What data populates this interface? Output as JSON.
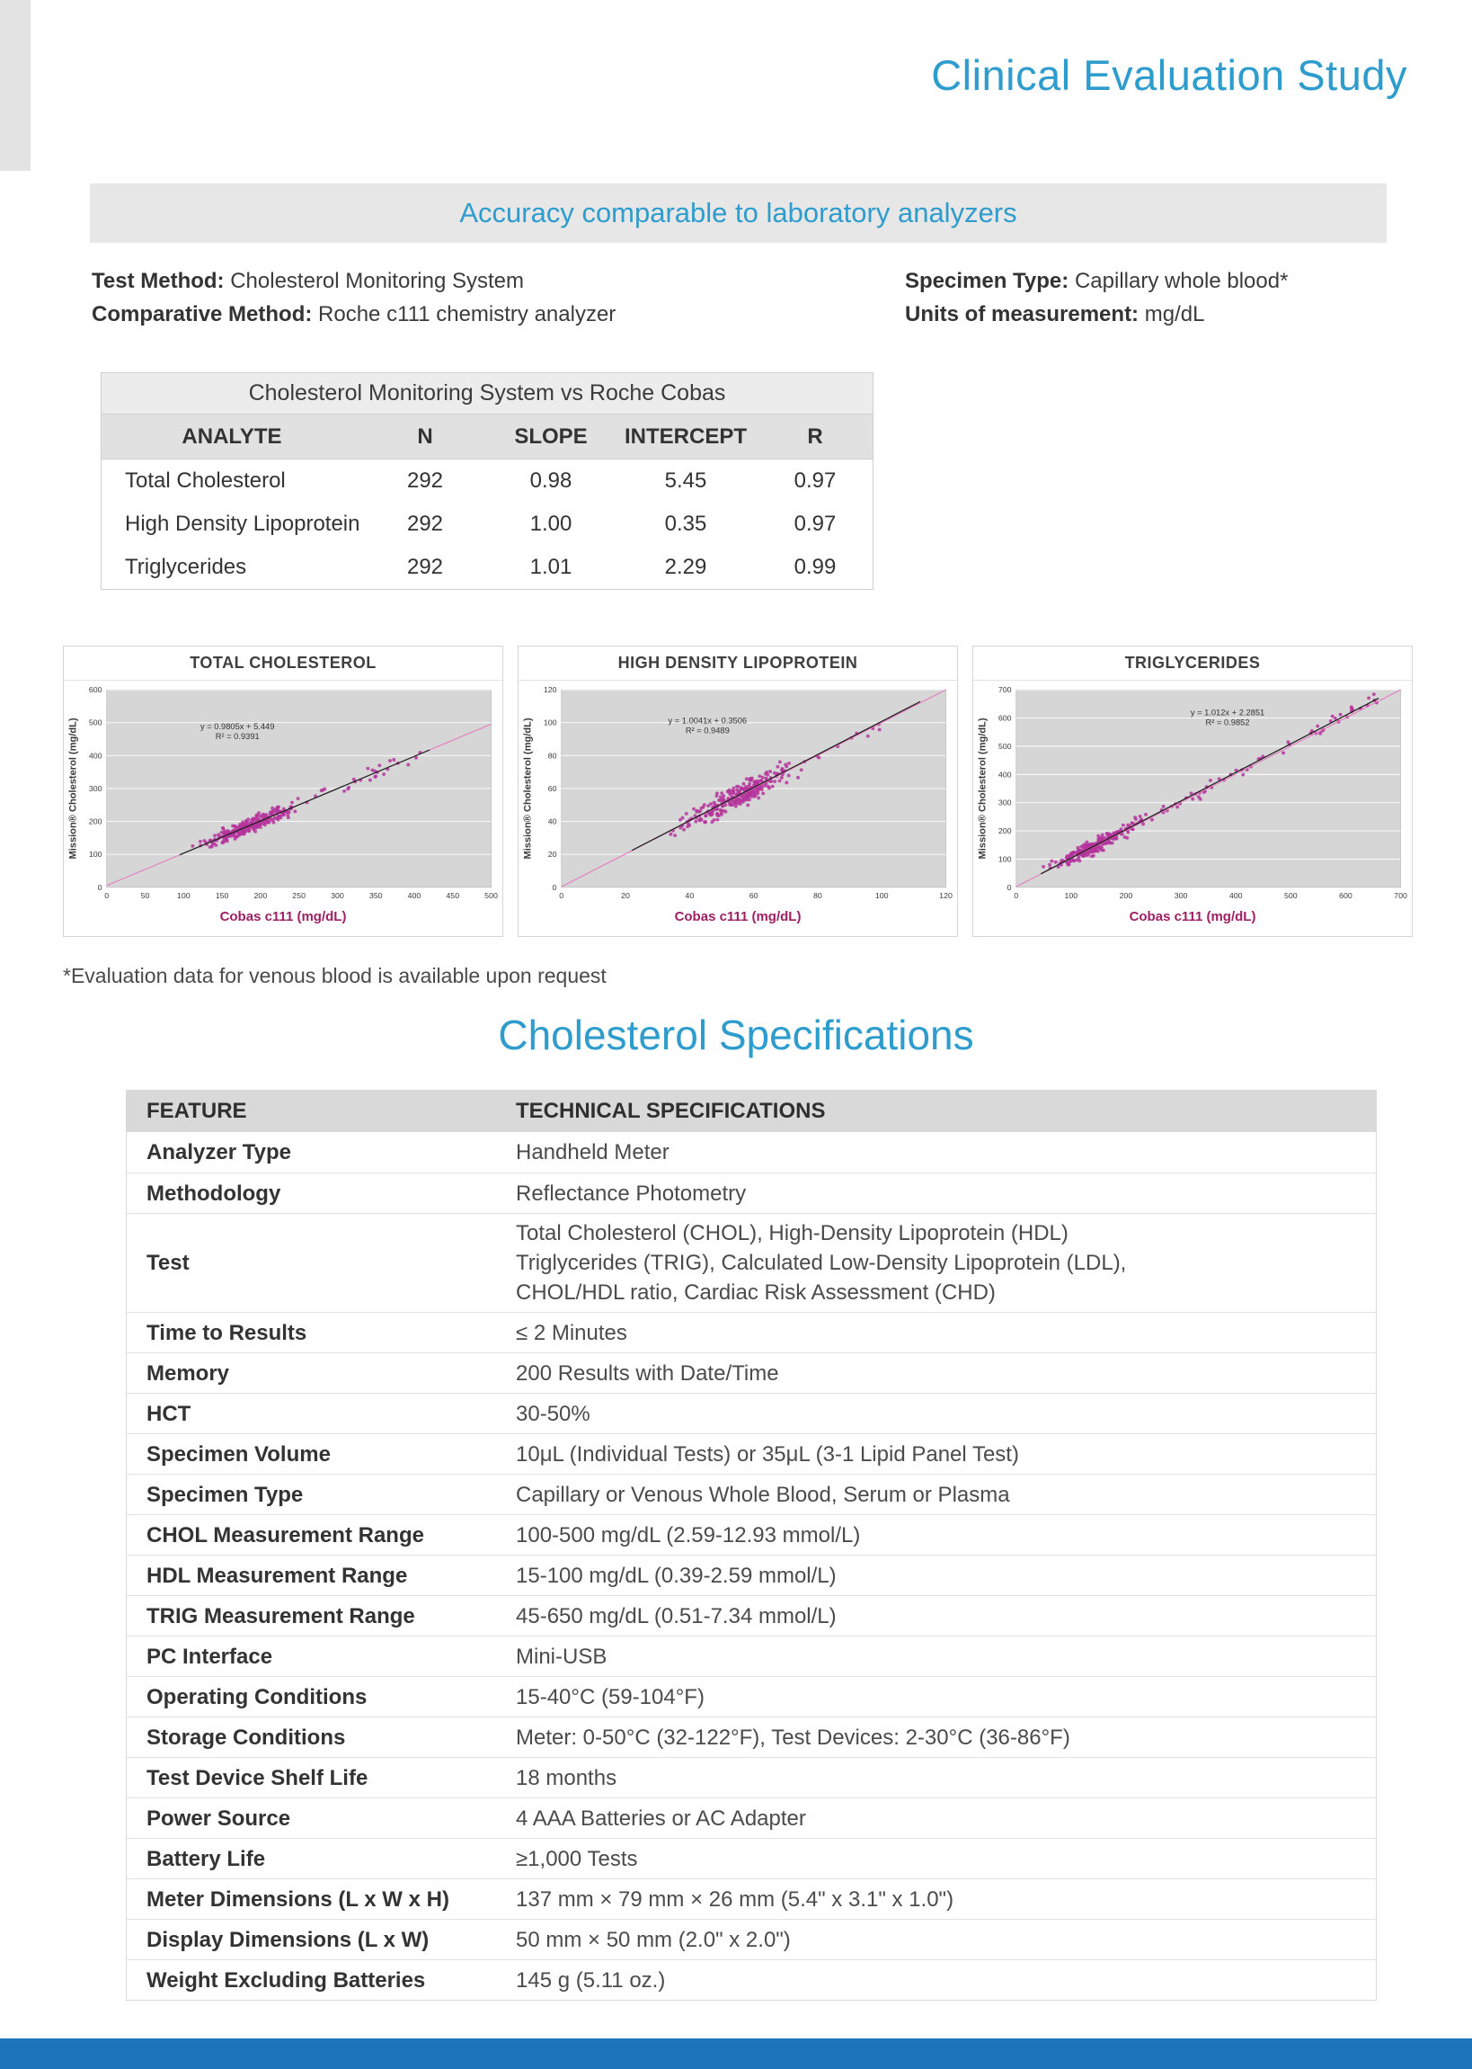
{
  "page": {
    "title": "Clinical Evaluation Study",
    "banner": "Accuracy comparable to laboratory analyzers",
    "footnote": "*Evaluation data for venous blood is available upon request",
    "accent_blue": "#2e9ccd",
    "footer_blue": "#1c75ba",
    "scatter_point_color": "#b5359c",
    "trend_line_color": "#1a1a1a",
    "fit_line_color": "#e673bd"
  },
  "methods": {
    "left": [
      {
        "label": "Test Method:",
        "value": "Cholesterol Monitoring System"
      },
      {
        "label": "Comparative Method:",
        "value": "Roche c111 chemistry analyzer"
      }
    ],
    "right": [
      {
        "label": "Specimen Type:",
        "value": "Capillary whole blood*"
      },
      {
        "label": "Units of measurement:",
        "value": "mg/dL"
      }
    ]
  },
  "comparison_table": {
    "title": "Cholesterol Monitoring System vs Roche Cobas",
    "columns": [
      "ANALYTE",
      "N",
      "SLOPE",
      "INTERCEPT",
      "R"
    ],
    "rows": [
      [
        "Total Cholesterol",
        "292",
        "0.98",
        "5.45",
        "0.97"
      ],
      [
        "High Density Lipoprotein",
        "292",
        "1.00",
        "0.35",
        "0.97"
      ],
      [
        "Triglycerides",
        "292",
        "1.01",
        "2.29",
        "0.99"
      ]
    ]
  },
  "chart_data": [
    {
      "type": "scatter",
      "title": "TOTAL CHOLESTEROL",
      "xlabel": "Cobas c111 (mg/dL)",
      "ylabel": "Mission® Cholesterol (mg/dL)",
      "equation": "y = 0.9805x + 5.449",
      "r2": "R² = 0.9391",
      "xlim": [
        0,
        500
      ],
      "ylim": [
        0,
        600
      ],
      "xticks": [
        0,
        50,
        100,
        150,
        200,
        250,
        300,
        350,
        400,
        450,
        500
      ],
      "yticks": [
        0,
        100,
        200,
        300,
        400,
        500,
        600
      ],
      "fit": {
        "slope": 0.9805,
        "intercept": 5.449
      },
      "n": 292,
      "data_range": [
        95,
        420
      ],
      "cluster": {
        "seed": 7,
        "center": 185,
        "spread": 45,
        "tail_to": 420,
        "tail_frac": 0.1,
        "noise": 16
      },
      "eq_pos": [
        0.34,
        0.2
      ]
    },
    {
      "type": "scatter",
      "title": "HIGH DENSITY LIPOPROTEIN",
      "xlabel": "Cobas c111 (mg/dL)",
      "ylabel": "Mission® Cholesterol (mg/dL)",
      "equation": "y = 1.0041x + 0.3506",
      "r2": "R² = 0.9489",
      "xlim": [
        0,
        120
      ],
      "ylim": [
        0,
        120
      ],
      "xticks": [
        0,
        20,
        40,
        60,
        80,
        100,
        120
      ],
      "yticks": [
        0,
        20,
        40,
        60,
        80,
        100,
        120
      ],
      "fit": {
        "slope": 1.0041,
        "intercept": 0.3506
      },
      "n": 292,
      "data_range": [
        22,
        112
      ],
      "cluster": {
        "seed": 11,
        "center": 55,
        "spread": 13,
        "tail_to": 100,
        "tail_frac": 0.08,
        "noise": 5
      },
      "eq_pos": [
        0.38,
        0.17
      ]
    },
    {
      "type": "scatter",
      "title": "TRIGLYCERIDES",
      "xlabel": "Cobas c111 (mg/dL)",
      "ylabel": "Mission® Cholesterol (mg/dL)",
      "equation": "y = 1.012x + 2.2851",
      "r2": "R² = 0.9852",
      "xlim": [
        0,
        700
      ],
      "ylim": [
        0,
        700
      ],
      "xticks": [
        0,
        100,
        200,
        300,
        400,
        500,
        600,
        700
      ],
      "yticks": [
        0,
        100,
        200,
        300,
        400,
        500,
        600,
        700
      ],
      "fit": {
        "slope": 1.012,
        "intercept": 2.2851
      },
      "n": 292,
      "data_range": [
        45,
        660
      ],
      "cluster": {
        "seed": 23,
        "center": 145,
        "spread": 60,
        "tail_to": 660,
        "tail_frac": 0.18,
        "noise": 18
      },
      "eq_pos": [
        0.55,
        0.13
      ]
    }
  ],
  "specifications": {
    "title": "Cholesterol Specifications",
    "columns": [
      "FEATURE",
      "TECHNICAL SPECIFICATIONS"
    ],
    "rows": [
      [
        "Analyzer Type",
        "Handheld Meter"
      ],
      [
        "Methodology",
        "Reflectance Photometry"
      ],
      [
        "Test",
        "Total Cholesterol (CHOL), High-Density Lipoprotein (HDL)\nTriglycerides (TRIG), Calculated Low-Density Lipoprotein (LDL),\nCHOL/HDL ratio, Cardiac Risk Assessment (CHD)"
      ],
      [
        "Time to Results",
        "≤ 2 Minutes"
      ],
      [
        "Memory",
        "200 Results with Date/Time"
      ],
      [
        "HCT",
        "30-50%"
      ],
      [
        "Specimen Volume",
        "10μL (Individual Tests) or 35μL (3-1 Lipid Panel Test)"
      ],
      [
        "Specimen Type",
        "Capillary or Venous Whole Blood, Serum or Plasma"
      ],
      [
        "CHOL Measurement Range",
        "100-500 mg/dL (2.59-12.93 mmol/L)"
      ],
      [
        "HDL Measurement Range",
        "15-100 mg/dL (0.39-2.59 mmol/L)"
      ],
      [
        "TRIG Measurement Range",
        "45-650 mg/dL (0.51-7.34 mmol/L)"
      ],
      [
        "PC Interface",
        "Mini-USB"
      ],
      [
        "Operating Conditions",
        "15-40°C (59-104°F)"
      ],
      [
        "Storage Conditions",
        "Meter: 0-50°C (32-122°F), Test Devices: 2-30°C (36-86°F)"
      ],
      [
        "Test Device Shelf Life",
        "18 months"
      ],
      [
        "Power Source",
        "4 AAA Batteries or AC Adapter"
      ],
      [
        "Battery Life",
        "≥1,000 Tests"
      ],
      [
        "Meter Dimensions (L x W x H)",
        "137 mm × 79 mm × 26 mm  (5.4\" x 3.1\" x 1.0\")"
      ],
      [
        "Display Dimensions (L x W)",
        "50 mm × 50 mm (2.0\" x 2.0\")"
      ],
      [
        "Weight Excluding Batteries",
        "145 g (5.11 oz.)"
      ]
    ]
  }
}
